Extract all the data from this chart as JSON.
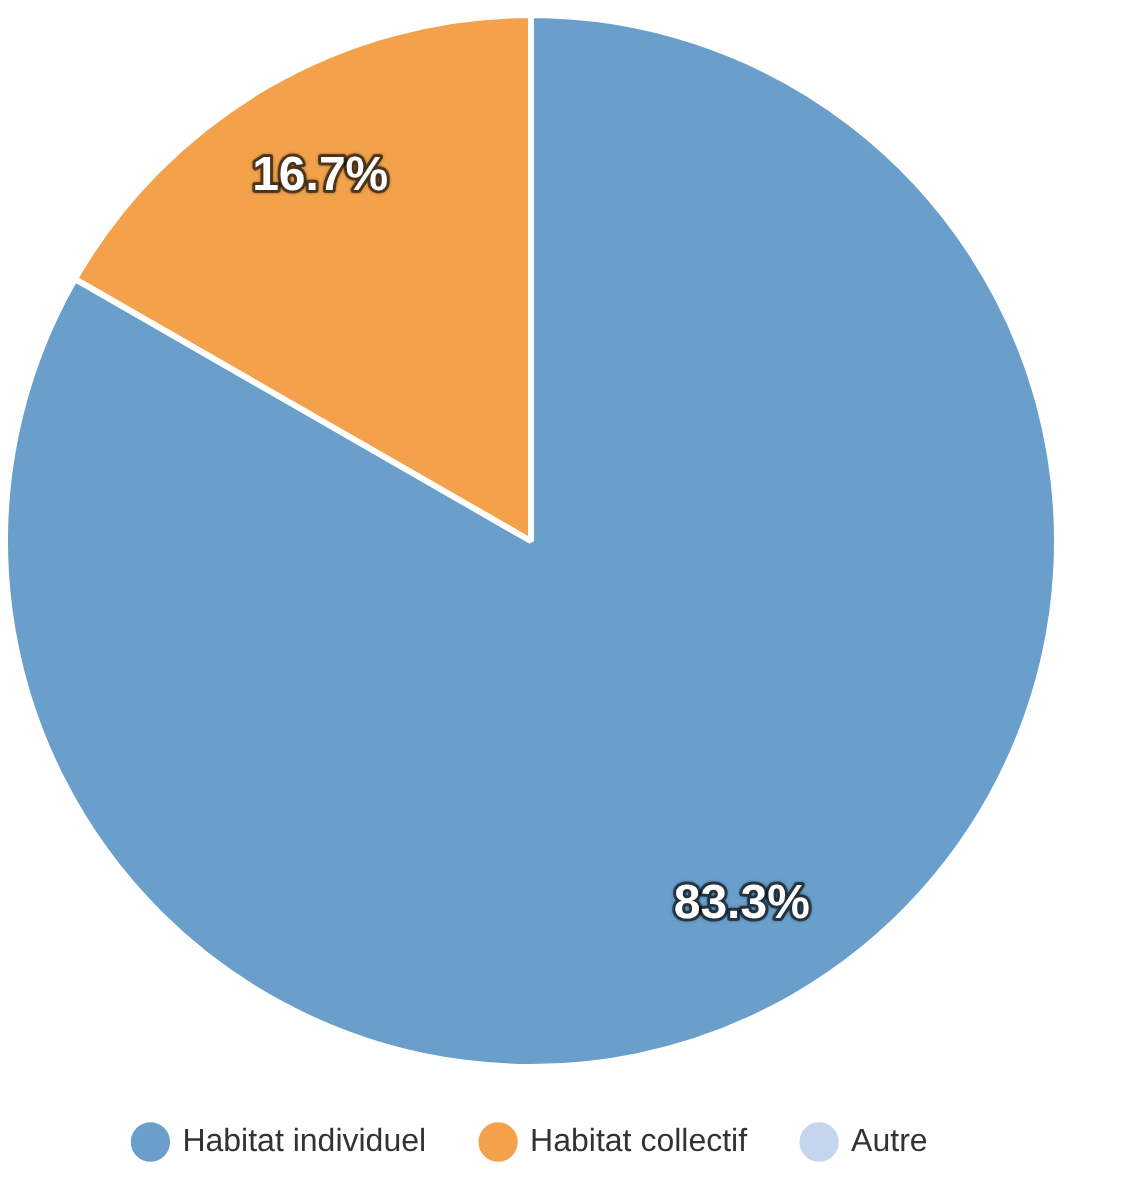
{
  "chart_data": {
    "type": "pie",
    "categories": [
      "Habitat individuel",
      "Habitat collectif",
      "Autre"
    ],
    "values": [
      83.3,
      16.7,
      0
    ],
    "colors": [
      "#6a9fcb",
      "#f3a24b",
      "#c5d5ee"
    ],
    "value_labels": [
      "83.3%",
      "16.7%",
      null
    ],
    "legend": "bottom"
  }
}
